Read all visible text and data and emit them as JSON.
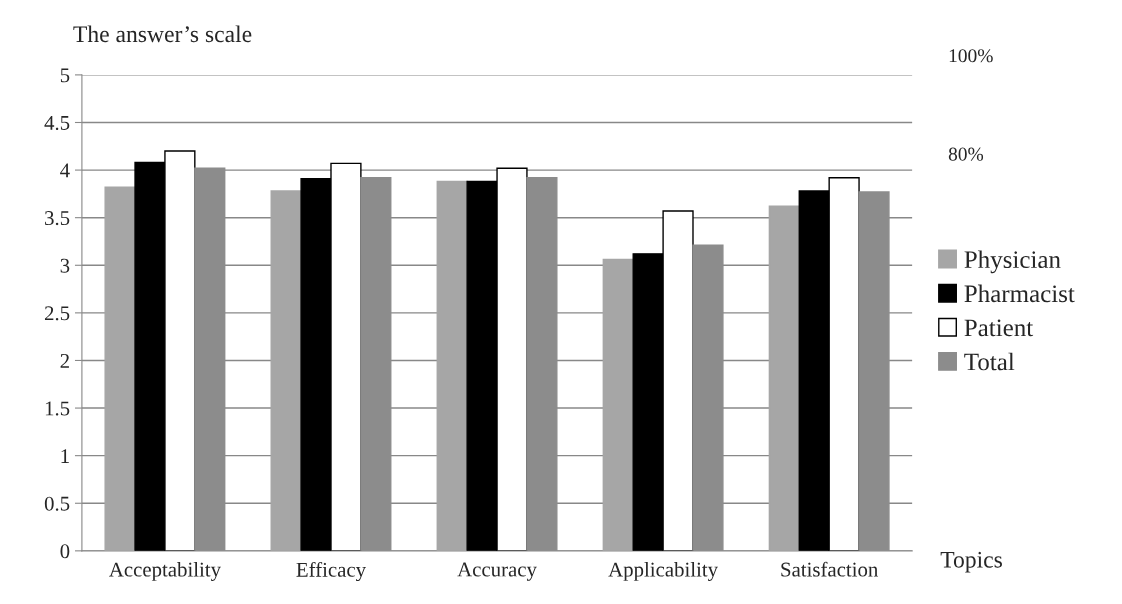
{
  "chart_data": {
    "type": "bar",
    "ylabel": "The answer’s scale",
    "xlabel": "Topics",
    "categories": [
      "Acceptability",
      "Efficacy",
      "Accuracy",
      "Applicability",
      "Satisfaction"
    ],
    "series": [
      {
        "name": "Physician",
        "color": "#a6a6a6",
        "values": [
          3.82,
          3.78,
          3.88,
          3.06,
          3.62
        ]
      },
      {
        "name": "Pharmacist",
        "color": "#000000",
        "values": [
          4.08,
          3.91,
          3.88,
          3.12,
          3.78
        ]
      },
      {
        "name": "Patient",
        "color": "#ffffff",
        "values": [
          4.2,
          4.07,
          4.02,
          3.57,
          3.92
        ]
      },
      {
        "name": "Total",
        "color": "#8c8c8c",
        "values": [
          4.02,
          3.92,
          3.92,
          3.21,
          3.77
        ]
      }
    ],
    "annotations": [
      "100%",
      "80%"
    ],
    "ylim": [
      0,
      5
    ],
    "yticks": [
      0,
      0.5,
      1,
      1.5,
      2,
      2.5,
      3,
      3.5,
      4,
      4.5,
      5
    ],
    "grid": "y",
    "legend": "right"
  }
}
